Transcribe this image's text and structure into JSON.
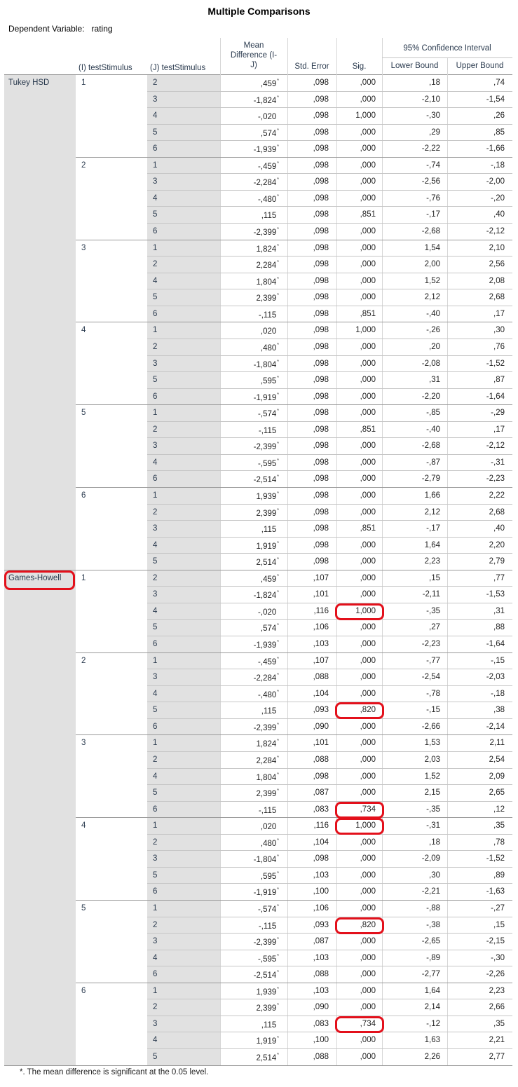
{
  "title": "Multiple Comparisons",
  "dependent_variable": {
    "label": "Dependent Variable:",
    "value": "rating"
  },
  "headers": {
    "i": "(I) testStimulus",
    "j": "(J) testStimulus",
    "mean_diff": [
      "Mean",
      "Difference (I-",
      "J)"
    ],
    "std_error": "Std. Error",
    "sig": "Sig.",
    "ci": "95% Confidence Interval",
    "lower": "Lower Bound",
    "upper": "Upper Bound"
  },
  "methods": [
    {
      "name": "Tukey HSD",
      "highlighted": false,
      "groups": [
        {
          "i": "1",
          "rows": [
            [
              "2",
              ",459",
              true,
              ",098",
              ",000",
              ",18",
              ",74"
            ],
            [
              "3",
              "-1,824",
              true,
              ",098",
              ",000",
              "-2,10",
              "-1,54"
            ],
            [
              "4",
              "-,020",
              false,
              ",098",
              "1,000",
              "-,30",
              ",26"
            ],
            [
              "5",
              ",574",
              true,
              ",098",
              ",000",
              ",29",
              ",85"
            ],
            [
              "6",
              "-1,939",
              true,
              ",098",
              ",000",
              "-2,22",
              "-1,66"
            ]
          ]
        },
        {
          "i": "2",
          "rows": [
            [
              "1",
              "-,459",
              true,
              ",098",
              ",000",
              "-,74",
              "-,18"
            ],
            [
              "3",
              "-2,284",
              true,
              ",098",
              ",000",
              "-2,56",
              "-2,00"
            ],
            [
              "4",
              "-,480",
              true,
              ",098",
              ",000",
              "-,76",
              "-,20"
            ],
            [
              "5",
              ",115",
              false,
              ",098",
              ",851",
              "-,17",
              ",40"
            ],
            [
              "6",
              "-2,399",
              true,
              ",098",
              ",000",
              "-2,68",
              "-2,12"
            ]
          ]
        },
        {
          "i": "3",
          "rows": [
            [
              "1",
              "1,824",
              true,
              ",098",
              ",000",
              "1,54",
              "2,10"
            ],
            [
              "2",
              "2,284",
              true,
              ",098",
              ",000",
              "2,00",
              "2,56"
            ],
            [
              "4",
              "1,804",
              true,
              ",098",
              ",000",
              "1,52",
              "2,08"
            ],
            [
              "5",
              "2,399",
              true,
              ",098",
              ",000",
              "2,12",
              "2,68"
            ],
            [
              "6",
              "-,115",
              false,
              ",098",
              ",851",
              "-,40",
              ",17"
            ]
          ]
        },
        {
          "i": "4",
          "rows": [
            [
              "1",
              ",020",
              false,
              ",098",
              "1,000",
              "-,26",
              ",30"
            ],
            [
              "2",
              ",480",
              true,
              ",098",
              ",000",
              ",20",
              ",76"
            ],
            [
              "3",
              "-1,804",
              true,
              ",098",
              ",000",
              "-2,08",
              "-1,52"
            ],
            [
              "5",
              ",595",
              true,
              ",098",
              ",000",
              ",31",
              ",87"
            ],
            [
              "6",
              "-1,919",
              true,
              ",098",
              ",000",
              "-2,20",
              "-1,64"
            ]
          ]
        },
        {
          "i": "5",
          "rows": [
            [
              "1",
              "-,574",
              true,
              ",098",
              ",000",
              "-,85",
              "-,29"
            ],
            [
              "2",
              "-,115",
              false,
              ",098",
              ",851",
              "-,40",
              ",17"
            ],
            [
              "3",
              "-2,399",
              true,
              ",098",
              ",000",
              "-2,68",
              "-2,12"
            ],
            [
              "4",
              "-,595",
              true,
              ",098",
              ",000",
              "-,87",
              "-,31"
            ],
            [
              "6",
              "-2,514",
              true,
              ",098",
              ",000",
              "-2,79",
              "-2,23"
            ]
          ]
        },
        {
          "i": "6",
          "rows": [
            [
              "1",
              "1,939",
              true,
              ",098",
              ",000",
              "1,66",
              "2,22"
            ],
            [
              "2",
              "2,399",
              true,
              ",098",
              ",000",
              "2,12",
              "2,68"
            ],
            [
              "3",
              ",115",
              false,
              ",098",
              ",851",
              "-,17",
              ",40"
            ],
            [
              "4",
              "1,919",
              true,
              ",098",
              ",000",
              "1,64",
              "2,20"
            ],
            [
              "5",
              "2,514",
              true,
              ",098",
              ",000",
              "2,23",
              "2,79"
            ]
          ]
        }
      ]
    },
    {
      "name": "Games-Howell",
      "highlighted": true,
      "groups": [
        {
          "i": "1",
          "rows": [
            [
              "2",
              ",459",
              true,
              ",107",
              ",000",
              ",15",
              ",77"
            ],
            [
              "3",
              "-1,824",
              true,
              ",101",
              ",000",
              "-2,11",
              "-1,53"
            ],
            [
              "4",
              "-,020",
              false,
              ",116",
              "1,000",
              "-,35",
              ",31"
            ],
            [
              "5",
              ",574",
              true,
              ",106",
              ",000",
              ",27",
              ",88"
            ],
            [
              "6",
              "-1,939",
              true,
              ",103",
              ",000",
              "-2,23",
              "-1,64"
            ]
          ]
        },
        {
          "i": "2",
          "rows": [
            [
              "1",
              "-,459",
              true,
              ",107",
              ",000",
              "-,77",
              "-,15"
            ],
            [
              "3",
              "-2,284",
              true,
              ",088",
              ",000",
              "-2,54",
              "-2,03"
            ],
            [
              "4",
              "-,480",
              true,
              ",104",
              ",000",
              "-,78",
              "-,18"
            ],
            [
              "5",
              ",115",
              false,
              ",093",
              ",820",
              "-,15",
              ",38"
            ],
            [
              "6",
              "-2,399",
              true,
              ",090",
              ",000",
              "-2,66",
              "-2,14"
            ]
          ]
        },
        {
          "i": "3",
          "rows": [
            [
              "1",
              "1,824",
              true,
              ",101",
              ",000",
              "1,53",
              "2,11"
            ],
            [
              "2",
              "2,284",
              true,
              ",088",
              ",000",
              "2,03",
              "2,54"
            ],
            [
              "4",
              "1,804",
              true,
              ",098",
              ",000",
              "1,52",
              "2,09"
            ],
            [
              "5",
              "2,399",
              true,
              ",087",
              ",000",
              "2,15",
              "2,65"
            ],
            [
              "6",
              "-,115",
              false,
              ",083",
              ",734",
              "-,35",
              ",12"
            ]
          ]
        },
        {
          "i": "4",
          "rows": [
            [
              "1",
              ",020",
              false,
              ",116",
              "1,000",
              "-,31",
              ",35"
            ],
            [
              "2",
              ",480",
              true,
              ",104",
              ",000",
              ",18",
              ",78"
            ],
            [
              "3",
              "-1,804",
              true,
              ",098",
              ",000",
              "-2,09",
              "-1,52"
            ],
            [
              "5",
              ",595",
              true,
              ",103",
              ",000",
              ",30",
              ",89"
            ],
            [
              "6",
              "-1,919",
              true,
              ",100",
              ",000",
              "-2,21",
              "-1,63"
            ]
          ]
        },
        {
          "i": "5",
          "rows": [
            [
              "1",
              "-,574",
              true,
              ",106",
              ",000",
              "-,88",
              "-,27"
            ],
            [
              "2",
              "-,115",
              false,
              ",093",
              ",820",
              "-,38",
              ",15"
            ],
            [
              "3",
              "-2,399",
              true,
              ",087",
              ",000",
              "-2,65",
              "-2,15"
            ],
            [
              "4",
              "-,595",
              true,
              ",103",
              ",000",
              "-,89",
              "-,30"
            ],
            [
              "6",
              "-2,514",
              true,
              ",088",
              ",000",
              "-2,77",
              "-2,26"
            ]
          ]
        },
        {
          "i": "6",
          "rows": [
            [
              "1",
              "1,939",
              true,
              ",103",
              ",000",
              "1,64",
              "2,23"
            ],
            [
              "2",
              "2,399",
              true,
              ",090",
              ",000",
              "2,14",
              "2,66"
            ],
            [
              "3",
              ",115",
              false,
              ",083",
              ",734",
              "-,12",
              ",35"
            ],
            [
              "4",
              "1,919",
              true,
              ",100",
              ",000",
              "1,63",
              "2,21"
            ],
            [
              "5",
              "2,514",
              true,
              ",088",
              ",000",
              "2,26",
              "2,77"
            ]
          ]
        }
      ]
    }
  ],
  "highlighted_sig_cells": [
    {
      "method": "Games-Howell",
      "i": "1",
      "j": "4",
      "value": "1,000"
    },
    {
      "method": "Games-Howell",
      "i": "2",
      "j": "5",
      "value": ",820"
    },
    {
      "method": "Games-Howell",
      "i": "3",
      "j": "6",
      "value": ",734"
    },
    {
      "method": "Games-Howell",
      "i": "4",
      "j": "1",
      "value": "1,000"
    },
    {
      "method": "Games-Howell",
      "i": "5",
      "j": "2",
      "value": ",820"
    },
    {
      "method": "Games-Howell",
      "i": "6",
      "j": "3",
      "value": ",734"
    }
  ],
  "footnote": "*. The mean difference is significant at the 0.05 level.",
  "highlight_color": "#e3101b"
}
